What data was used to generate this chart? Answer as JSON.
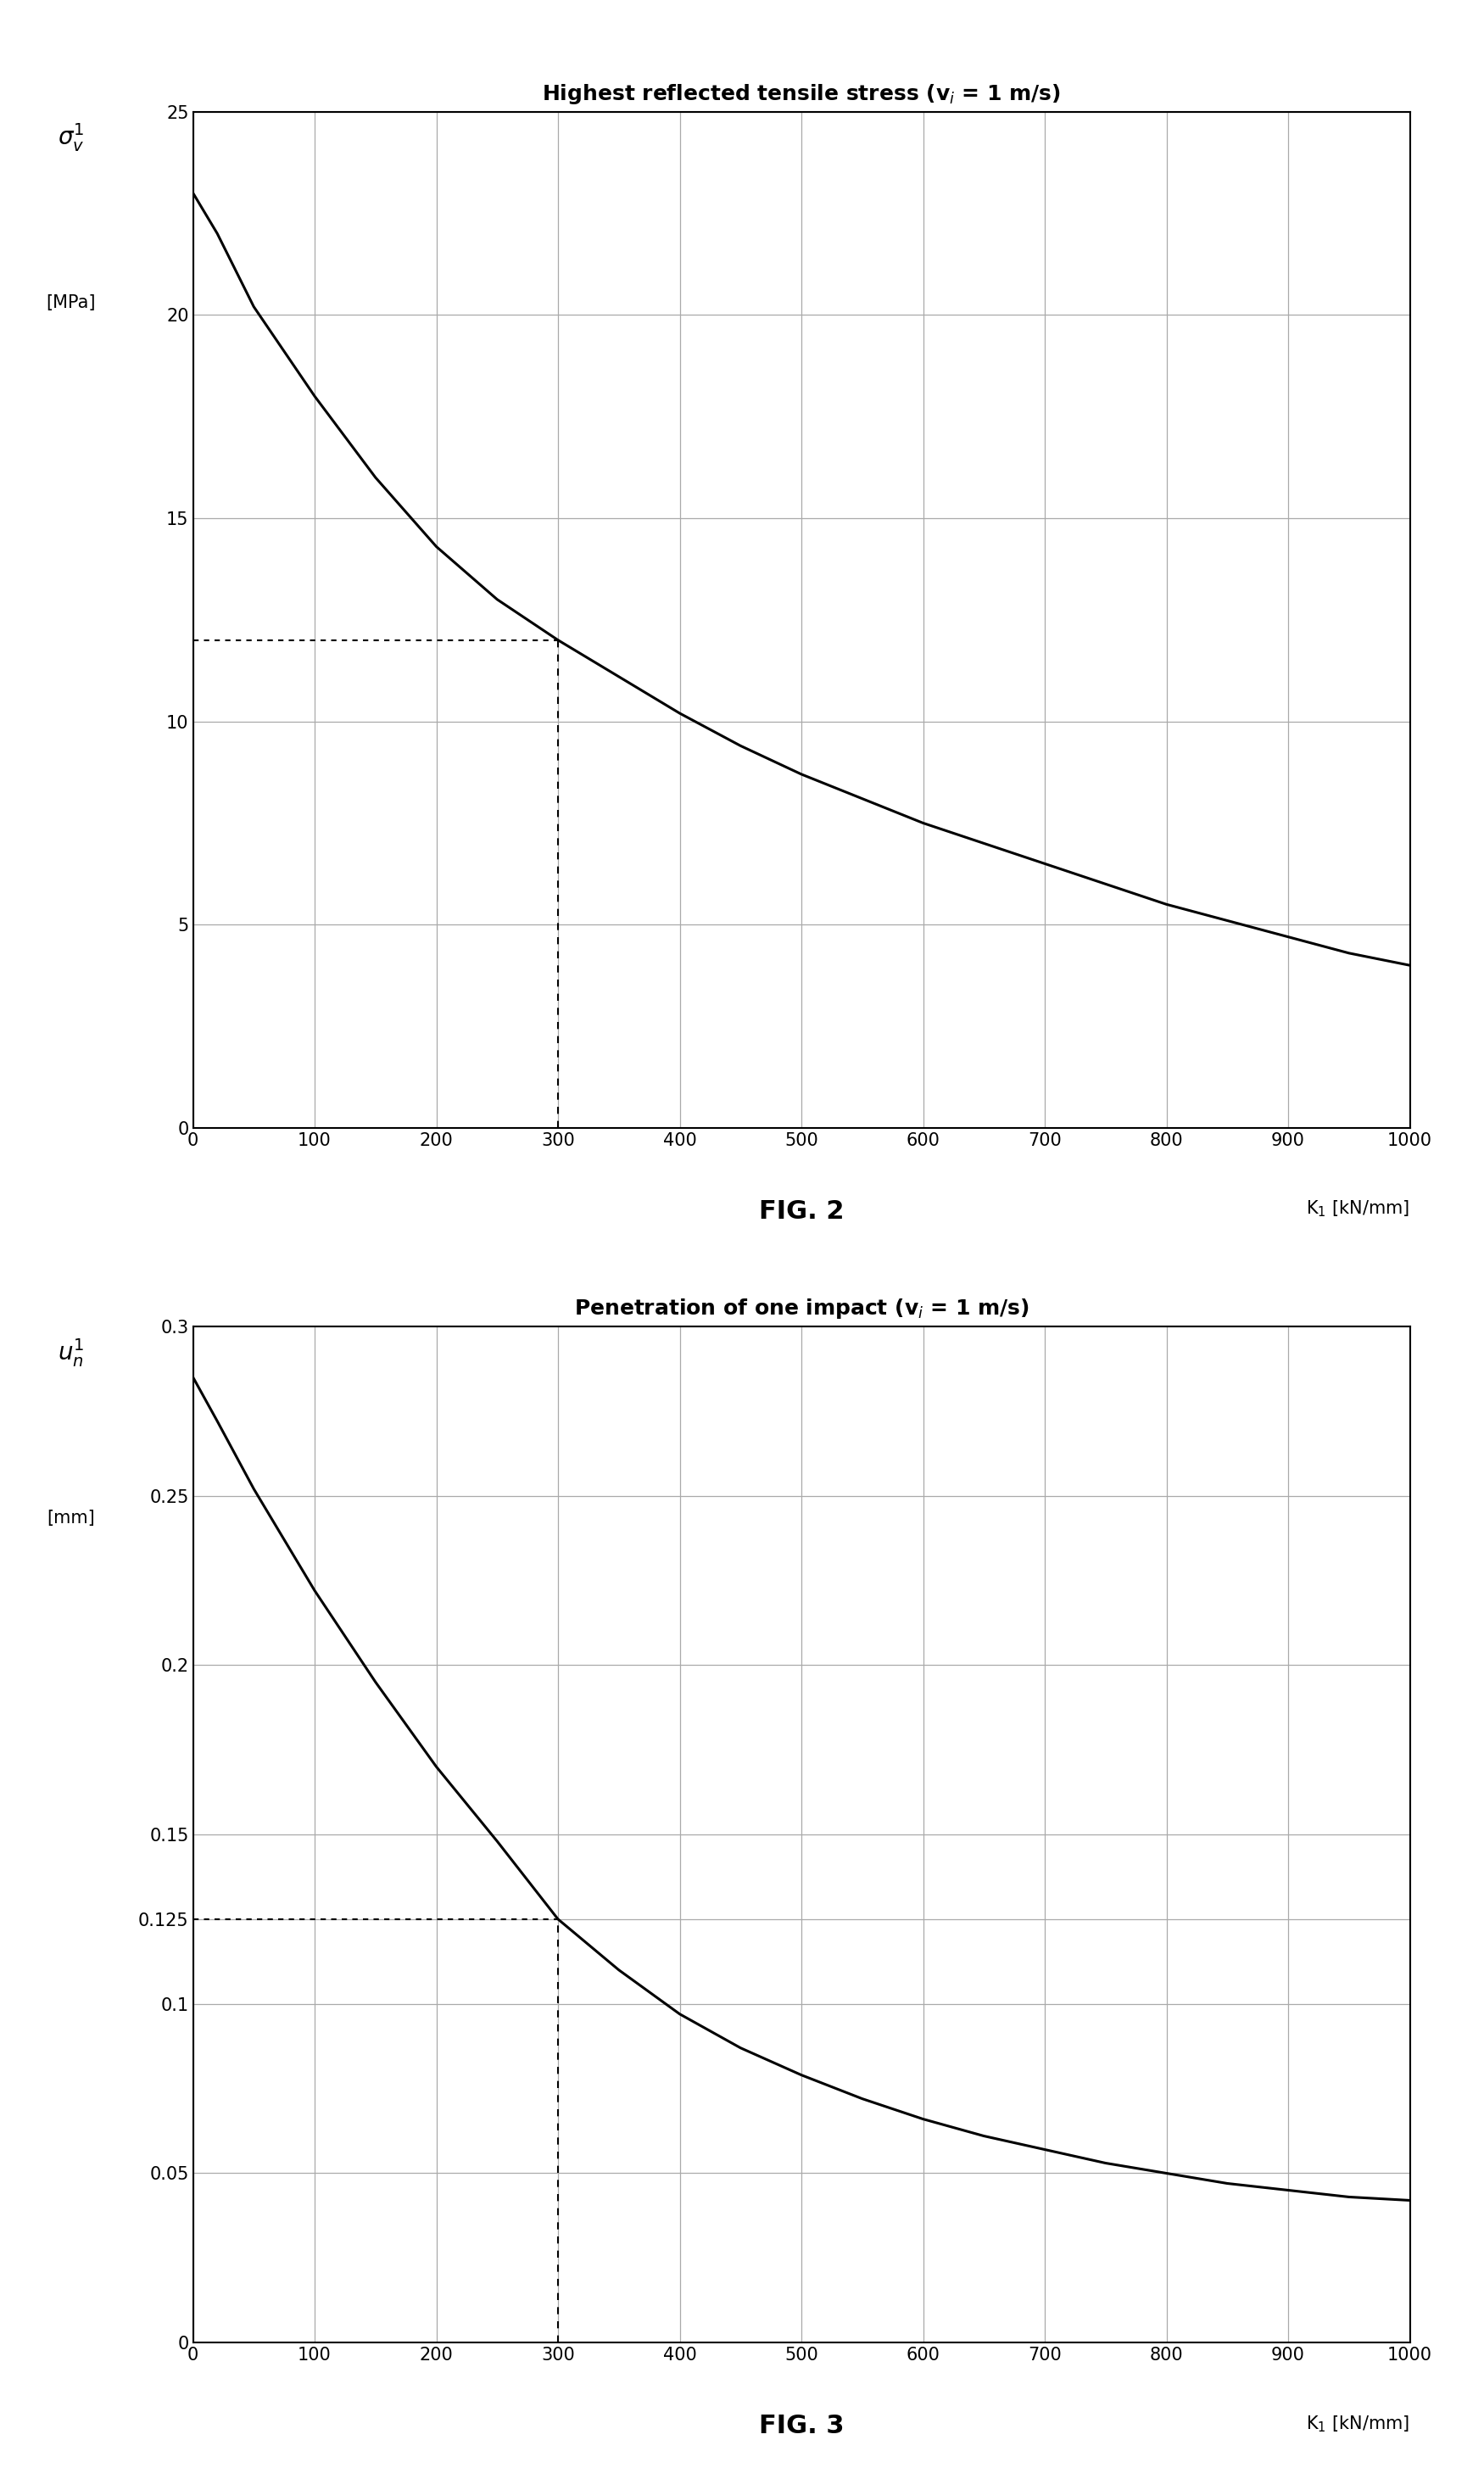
{
  "fig2": {
    "title": "Highest reflected tensile stress (v$_i$ = 1 m/s)",
    "xlabel": "K$_1$ [kN/mm]",
    "xlim": [
      0,
      1000
    ],
    "ylim": [
      0,
      25
    ],
    "yticks": [
      0,
      5,
      10,
      15,
      20,
      25
    ],
    "xticks": [
      0,
      100,
      200,
      300,
      400,
      500,
      600,
      700,
      800,
      900,
      1000
    ],
    "dashed_x": 300,
    "dashed_y": 12,
    "curve_k": [
      0,
      20,
      50,
      100,
      150,
      200,
      250,
      300,
      350,
      400,
      450,
      500,
      550,
      600,
      650,
      700,
      750,
      800,
      850,
      900,
      950,
      1000
    ],
    "curve_v": [
      23.0,
      22.0,
      20.2,
      18.0,
      16.0,
      14.3,
      13.0,
      12.0,
      11.1,
      10.2,
      9.4,
      8.7,
      8.1,
      7.5,
      7.0,
      6.5,
      6.0,
      5.5,
      5.1,
      4.7,
      4.3,
      4.0
    ],
    "caption": "FIG. 2",
    "ylabel1": "$\\sigma_v^1$",
    "ylabel2": "[MPa]"
  },
  "fig3": {
    "title": "Penetration of one impact (v$_i$ = 1 m/s)",
    "xlabel": "K$_1$ [kN/mm]",
    "xlim": [
      0,
      1000
    ],
    "ylim": [
      0,
      0.3
    ],
    "yticks": [
      0,
      0.05,
      0.1,
      0.125,
      0.15,
      0.2,
      0.25,
      0.3
    ],
    "yticklabels": [
      "0",
      "0.05",
      "0.1",
      "0.125",
      "0.15",
      "0.2",
      "0.25",
      "0.3"
    ],
    "xticks": [
      0,
      100,
      200,
      300,
      400,
      500,
      600,
      700,
      800,
      900,
      1000
    ],
    "dashed_x": 300,
    "dashed_y": 0.125,
    "curve_k": [
      0,
      20,
      50,
      100,
      150,
      200,
      250,
      300,
      350,
      400,
      450,
      500,
      550,
      600,
      650,
      700,
      750,
      800,
      850,
      900,
      950,
      1000
    ],
    "curve_v": [
      0.285,
      0.272,
      0.252,
      0.222,
      0.195,
      0.17,
      0.148,
      0.125,
      0.11,
      0.097,
      0.087,
      0.079,
      0.072,
      0.066,
      0.061,
      0.057,
      0.053,
      0.05,
      0.047,
      0.045,
      0.043,
      0.042
    ],
    "caption": "FIG. 3",
    "ylabel1": "$u_n^1$",
    "ylabel2": "[mm]"
  },
  "background_color": "#ffffff",
  "line_color": "#000000",
  "grid_color": "#aaaaaa",
  "dashed_color": "#000000"
}
